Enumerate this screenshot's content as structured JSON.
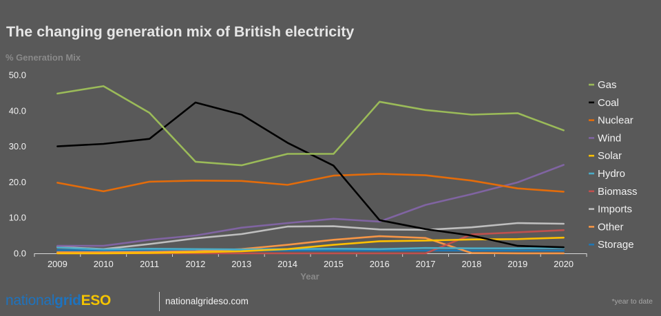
{
  "chart_data": {
    "type": "line",
    "title": "The changing generation mix of British electricity",
    "ylabel": "% Generation Mix",
    "xlabel": "Year",
    "ylim": [
      0,
      50
    ],
    "yticks": [
      "0.0",
      "10.0",
      "20.0",
      "30.0",
      "40.0",
      "50.0"
    ],
    "x": [
      "2009",
      "2010",
      "2011",
      "2012",
      "2013",
      "2014",
      "2015",
      "2016",
      "2017",
      "2018",
      "2019",
      "2020"
    ],
    "grid": false,
    "legend_position": "right",
    "series": [
      {
        "name": "Gas",
        "color": "#9bbb59",
        "values": [
          44.8,
          46.9,
          39.4,
          25.7,
          24.7,
          27.9,
          27.9,
          42.5,
          40.2,
          38.9,
          39.3,
          34.5
        ]
      },
      {
        "name": "Coal",
        "color": "#000000",
        "values": [
          30.0,
          30.7,
          32.1,
          42.3,
          38.9,
          31.0,
          24.6,
          9.3,
          6.8,
          5.0,
          2.1,
          1.7
        ]
      },
      {
        "name": "Nuclear",
        "color": "#e46c0a",
        "values": [
          19.8,
          17.4,
          20.1,
          20.4,
          20.3,
          19.2,
          21.8,
          22.3,
          21.9,
          20.4,
          18.2,
          17.3
        ]
      },
      {
        "name": "Wind",
        "color": "#8064a2",
        "values": [
          2.1,
          2.1,
          3.8,
          5.0,
          7.2,
          8.5,
          9.7,
          8.9,
          13.6,
          16.6,
          19.9,
          24.8
        ]
      },
      {
        "name": "Solar",
        "color": "#ffc000",
        "values": [
          0.0,
          0.0,
          0.1,
          0.3,
          0.6,
          1.2,
          2.4,
          3.4,
          3.6,
          3.9,
          4.0,
          4.4
        ]
      },
      {
        "name": "Hydro",
        "color": "#4bacc6",
        "values": [
          1.6,
          1.1,
          1.3,
          1.2,
          1.1,
          1.2,
          1.3,
          1.2,
          1.5,
          1.4,
          1.4,
          1.5
        ]
      },
      {
        "name": "Biomass",
        "color": "#c0504d",
        "values": [
          0.0,
          0.0,
          0.0,
          0.0,
          0.0,
          0.0,
          0.0,
          0.0,
          0.0,
          5.3,
          5.9,
          6.5
        ]
      },
      {
        "name": "Imports",
        "color": "#bfbfbf",
        "values": [
          1.8,
          1.2,
          2.6,
          4.2,
          5.4,
          7.5,
          7.6,
          6.7,
          6.6,
          7.3,
          8.5,
          8.3
        ]
      },
      {
        "name": "Other",
        "color": "#f79646",
        "values": [
          0.3,
          0.3,
          0.4,
          0.6,
          1.2,
          2.4,
          3.8,
          4.8,
          4.3,
          0.1,
          0.0,
          0.0
        ]
      },
      {
        "name": "Storage",
        "color": "#1f77b4",
        "values": [
          0.9,
          0.8,
          0.8,
          0.8,
          0.8,
          0.8,
          0.8,
          0.8,
          0.8,
          0.8,
          0.8,
          0.8
        ]
      }
    ]
  },
  "footer": {
    "logo_part1": "national",
    "logo_part2": "grid",
    "logo_part3": "ESO",
    "site": "nationalgrideso.com",
    "footnote": "*year to date"
  }
}
